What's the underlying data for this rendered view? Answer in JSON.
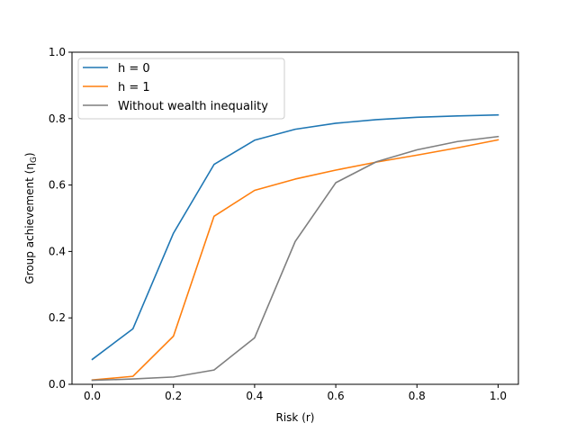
{
  "chart_data": {
    "type": "line",
    "title": "",
    "xlabel": "Risk (r)",
    "ylabel": "Group achievement (η",
    "ylabel_sub": "G",
    "ylabel_close": ")",
    "xlim": [
      -0.05,
      1.05
    ],
    "ylim": [
      0.0,
      1.0
    ],
    "xticks": [
      0.0,
      0.2,
      0.4,
      0.6,
      0.8,
      1.0
    ],
    "xtick_labels": [
      "0.0",
      "0.2",
      "0.4",
      "0.6",
      "0.8",
      "1.0"
    ],
    "yticks": [
      0.0,
      0.2,
      0.4,
      0.6,
      0.8,
      1.0
    ],
    "ytick_labels": [
      "0.0",
      "0.2",
      "0.4",
      "0.6",
      "0.8",
      "1.0"
    ],
    "grid": false,
    "legend_position": "top-left",
    "x": [
      0.0,
      0.1,
      0.2,
      0.3,
      0.4,
      0.5,
      0.6,
      0.7,
      0.8,
      0.9,
      1.0
    ],
    "series": [
      {
        "name": "h = 0",
        "color": "#1f77b4",
        "values": [
          0.075,
          0.167,
          0.455,
          0.662,
          0.735,
          0.768,
          0.786,
          0.797,
          0.804,
          0.808,
          0.811
        ]
      },
      {
        "name": "h = 1",
        "color": "#ff7f0e",
        "values": [
          0.013,
          0.024,
          0.145,
          0.506,
          0.584,
          0.618,
          0.645,
          0.669,
          0.69,
          0.712,
          0.736
        ]
      },
      {
        "name": "Without wealth inequality",
        "color": "#7f7f7f",
        "values": [
          0.012,
          0.016,
          0.022,
          0.043,
          0.14,
          0.43,
          0.607,
          0.67,
          0.706,
          0.731,
          0.746
        ]
      }
    ]
  }
}
